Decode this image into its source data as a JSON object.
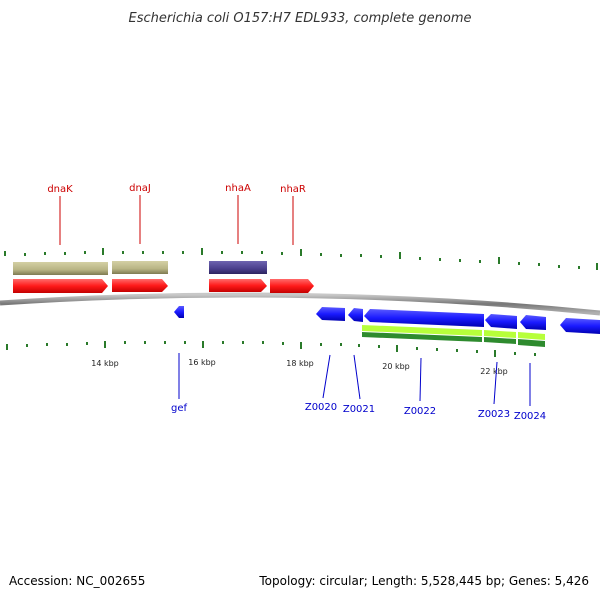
{
  "title": "Escherichia coli O157:H7 EDL933, complete genome",
  "footer": {
    "accession": "Accession: NC_002655",
    "summary": "Topology: circular; Length: 5,528,445 bp; Genes: 5,426"
  },
  "colors": {
    "forward_gene": "#ff1a1a",
    "reverse_gene": "#1a1aff",
    "cog_tan": "#b8b484",
    "cog_purple": "#4a3f8c",
    "cog_green_light": "#b7ff3b",
    "cog_green_dark": "#2e8b2e",
    "tick": "#2a7a2a",
    "backbone": "#888888",
    "top_label": "#cc0000",
    "bottom_label": "#0000cc"
  },
  "scale_labels": [
    "14 kbp",
    "16 kbp",
    "18 kbp",
    "20 kbp",
    "22 kbp"
  ],
  "forward_genes": [
    "dnaK",
    "dnaJ",
    "nhaA",
    "nhaR"
  ],
  "reverse_genes": [
    "gef",
    "Z0020",
    "Z0021",
    "Z0022",
    "Z0023",
    "Z0024"
  ]
}
